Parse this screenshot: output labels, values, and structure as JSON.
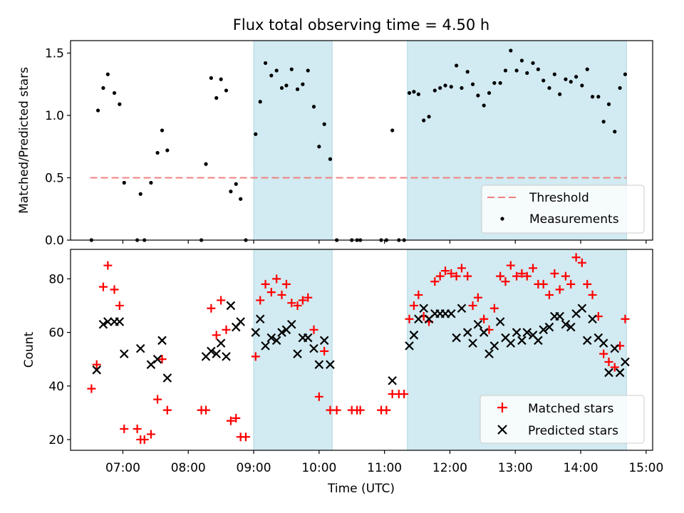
{
  "figure": {
    "title": "Flux total observing time = 4.50 h",
    "xlabel": "Time (UTC)",
    "xticks": [
      {
        "label": "07:00",
        "value": 7.0
      },
      {
        "label": "08:00",
        "value": 8.0
      },
      {
        "label": "09:00",
        "value": 9.0
      },
      {
        "label": "10:00",
        "value": 10.0
      },
      {
        "label": "11:00",
        "value": 11.0
      },
      {
        "label": "12:00",
        "value": 12.0
      },
      {
        "label": "13:00",
        "value": 13.0
      },
      {
        "label": "14:00",
        "value": 14.0
      },
      {
        "label": "15:00",
        "value": 15.0
      }
    ],
    "xlim": [
      6.2,
      15.1
    ],
    "shaded_intervals": [
      [
        9.0,
        10.2
      ],
      [
        11.35,
        14.7
      ]
    ],
    "shade_color": "#add8e6"
  },
  "chart_data": [
    {
      "type": "scatter",
      "ylabel": "Matched/Predicted stars",
      "ylim": [
        0,
        1.6
      ],
      "yticks": [
        {
          "label": "0.0",
          "value": 0.0
        },
        {
          "label": "0.5",
          "value": 0.5
        },
        {
          "label": "1.0",
          "value": 1.0
        },
        {
          "label": "1.5",
          "value": 1.5
        }
      ],
      "threshold": {
        "name": "Threshold",
        "value": 0.5,
        "x_range": [
          6.5,
          14.7
        ],
        "color": "#f08080"
      },
      "legend_position": "lower-right",
      "series": [
        {
          "name": "Measurements",
          "color": "#000000",
          "marker": "dot",
          "points": [
            [
              6.52,
              0.0
            ],
            [
              6.62,
              1.04
            ],
            [
              6.7,
              1.22
            ],
            [
              6.77,
              1.33
            ],
            [
              6.87,
              1.18
            ],
            [
              6.95,
              1.09
            ],
            [
              7.02,
              0.46
            ],
            [
              7.22,
              0.0
            ],
            [
              7.27,
              0.37
            ],
            [
              7.33,
              0.0
            ],
            [
              7.43,
              0.46
            ],
            [
              7.53,
              0.7
            ],
            [
              7.6,
              0.88
            ],
            [
              7.68,
              0.72
            ],
            [
              8.2,
              0.0
            ],
            [
              8.27,
              0.61
            ],
            [
              8.35,
              1.3
            ],
            [
              8.43,
              1.14
            ],
            [
              8.5,
              1.29
            ],
            [
              8.58,
              1.2
            ],
            [
              8.65,
              0.39
            ],
            [
              8.73,
              0.45
            ],
            [
              8.8,
              0.33
            ],
            [
              8.88,
              0.0
            ],
            [
              9.03,
              0.85
            ],
            [
              9.1,
              1.11
            ],
            [
              9.18,
              1.42
            ],
            [
              9.27,
              1.32
            ],
            [
              9.35,
              1.36
            ],
            [
              9.43,
              1.22
            ],
            [
              9.5,
              1.24
            ],
            [
              9.58,
              1.37
            ],
            [
              9.67,
              1.21
            ],
            [
              9.75,
              1.25
            ],
            [
              9.83,
              1.36
            ],
            [
              9.92,
              1.07
            ],
            [
              10.0,
              0.75
            ],
            [
              10.08,
              0.93
            ],
            [
              10.17,
              0.65
            ],
            [
              10.27,
              0.0
            ],
            [
              10.5,
              0.0
            ],
            [
              10.58,
              0.0
            ],
            [
              10.63,
              0.0
            ],
            [
              10.95,
              0.0
            ],
            [
              11.03,
              0.0
            ],
            [
              11.12,
              0.88
            ],
            [
              11.22,
              0.0
            ],
            [
              11.3,
              0.0
            ],
            [
              11.38,
              1.18
            ],
            [
              11.45,
              1.19
            ],
            [
              11.52,
              1.17
            ],
            [
              11.6,
              0.96
            ],
            [
              11.68,
              0.99
            ],
            [
              11.77,
              1.2
            ],
            [
              11.85,
              1.22
            ],
            [
              11.93,
              1.24
            ],
            [
              12.02,
              1.23
            ],
            [
              12.1,
              1.4
            ],
            [
              12.18,
              1.22
            ],
            [
              12.27,
              1.35
            ],
            [
              12.35,
              1.25
            ],
            [
              12.43,
              1.16
            ],
            [
              12.52,
              1.08
            ],
            [
              12.6,
              1.18
            ],
            [
              12.68,
              1.26
            ],
            [
              12.77,
              1.26
            ],
            [
              12.85,
              1.36
            ],
            [
              12.93,
              1.52
            ],
            [
              13.02,
              1.36
            ],
            [
              13.1,
              1.44
            ],
            [
              13.18,
              1.34
            ],
            [
              13.27,
              1.42
            ],
            [
              13.35,
              1.37
            ],
            [
              13.43,
              1.28
            ],
            [
              13.52,
              1.22
            ],
            [
              13.6,
              1.33
            ],
            [
              13.68,
              1.17
            ],
            [
              13.77,
              1.29
            ],
            [
              13.85,
              1.27
            ],
            [
              13.93,
              1.31
            ],
            [
              14.02,
              1.24
            ],
            [
              14.1,
              1.37
            ],
            [
              14.18,
              1.15
            ],
            [
              14.27,
              1.15
            ],
            [
              14.35,
              0.95
            ],
            [
              14.43,
              1.09
            ],
            [
              14.52,
              0.87
            ],
            [
              14.6,
              1.22
            ],
            [
              14.68,
              1.33
            ]
          ]
        }
      ]
    },
    {
      "type": "scatter",
      "ylabel": "Count",
      "ylim": [
        16,
        91
      ],
      "yticks": [
        {
          "label": "20",
          "value": 20
        },
        {
          "label": "40",
          "value": 40
        },
        {
          "label": "60",
          "value": 60
        },
        {
          "label": "80",
          "value": 80
        }
      ],
      "legend_position": "lower-right",
      "series": [
        {
          "name": "Matched stars",
          "color": "#ff0000",
          "marker": "plus",
          "points": [
            [
              6.52,
              39
            ],
            [
              6.6,
              48
            ],
            [
              6.7,
              77
            ],
            [
              6.77,
              85
            ],
            [
              6.87,
              76
            ],
            [
              6.95,
              70
            ],
            [
              7.02,
              24
            ],
            [
              7.22,
              24
            ],
            [
              7.27,
              20
            ],
            [
              7.33,
              20
            ],
            [
              7.43,
              22
            ],
            [
              7.53,
              35
            ],
            [
              7.6,
              50
            ],
            [
              7.68,
              31
            ],
            [
              8.2,
              31
            ],
            [
              8.27,
              31
            ],
            [
              8.35,
              69
            ],
            [
              8.43,
              59
            ],
            [
              8.5,
              72
            ],
            [
              8.58,
              61
            ],
            [
              8.65,
              27
            ],
            [
              8.73,
              28
            ],
            [
              8.8,
              21
            ],
            [
              8.88,
              21
            ],
            [
              9.03,
              51
            ],
            [
              9.1,
              72
            ],
            [
              9.18,
              78
            ],
            [
              9.27,
              75
            ],
            [
              9.35,
              80
            ],
            [
              9.43,
              74
            ],
            [
              9.5,
              78
            ],
            [
              9.58,
              71
            ],
            [
              9.67,
              70
            ],
            [
              9.75,
              72
            ],
            [
              9.83,
              73
            ],
            [
              9.92,
              61
            ],
            [
              10.0,
              36
            ],
            [
              10.08,
              53
            ],
            [
              10.17,
              31
            ],
            [
              10.27,
              31
            ],
            [
              10.5,
              31
            ],
            [
              10.58,
              31
            ],
            [
              10.63,
              31
            ],
            [
              10.95,
              31
            ],
            [
              11.03,
              31
            ],
            [
              11.12,
              37
            ],
            [
              11.22,
              37
            ],
            [
              11.3,
              37
            ],
            [
              11.38,
              65
            ],
            [
              11.45,
              70
            ],
            [
              11.52,
              74
            ],
            [
              11.6,
              66
            ],
            [
              11.68,
              64
            ],
            [
              11.77,
              79
            ],
            [
              11.85,
              81
            ],
            [
              11.93,
              83
            ],
            [
              12.02,
              82
            ],
            [
              12.1,
              81
            ],
            [
              12.18,
              84
            ],
            [
              12.27,
              81
            ],
            [
              12.35,
              70
            ],
            [
              12.43,
              73
            ],
            [
              12.52,
              65
            ],
            [
              12.6,
              61
            ],
            [
              12.68,
              69
            ],
            [
              12.77,
              81
            ],
            [
              12.85,
              79
            ],
            [
              12.93,
              85
            ],
            [
              13.02,
              81
            ],
            [
              13.1,
              82
            ],
            [
              13.18,
              81
            ],
            [
              13.27,
              84
            ],
            [
              13.35,
              78
            ],
            [
              13.43,
              78
            ],
            [
              13.52,
              74
            ],
            [
              13.6,
              82
            ],
            [
              13.68,
              76
            ],
            [
              13.77,
              81
            ],
            [
              13.85,
              78
            ],
            [
              13.93,
              88
            ],
            [
              14.02,
              86
            ],
            [
              14.1,
              78
            ],
            [
              14.18,
              74
            ],
            [
              14.27,
              66
            ],
            [
              14.35,
              52
            ],
            [
              14.43,
              49
            ],
            [
              14.52,
              47
            ],
            [
              14.6,
              55
            ],
            [
              14.68,
              65
            ]
          ]
        },
        {
          "name": "Predicted stars",
          "color": "#000000",
          "marker": "x",
          "points": [
            [
              6.6,
              46
            ],
            [
              6.7,
              63
            ],
            [
              6.77,
              64
            ],
            [
              6.87,
              64
            ],
            [
              6.95,
              64
            ],
            [
              7.02,
              52
            ],
            [
              7.27,
              54
            ],
            [
              7.43,
              48
            ],
            [
              7.53,
              50
            ],
            [
              7.6,
              57
            ],
            [
              7.68,
              43
            ],
            [
              8.27,
              51
            ],
            [
              8.35,
              53
            ],
            [
              8.43,
              52
            ],
            [
              8.5,
              56
            ],
            [
              8.58,
              51
            ],
            [
              8.65,
              70
            ],
            [
              8.73,
              62
            ],
            [
              8.8,
              64
            ],
            [
              9.03,
              60
            ],
            [
              9.1,
              65
            ],
            [
              9.18,
              55
            ],
            [
              9.27,
              58
            ],
            [
              9.35,
              57
            ],
            [
              9.43,
              60
            ],
            [
              9.5,
              61
            ],
            [
              9.58,
              63
            ],
            [
              9.67,
              52
            ],
            [
              9.75,
              58
            ],
            [
              9.83,
              58
            ],
            [
              9.92,
              54
            ],
            [
              10.0,
              48
            ],
            [
              10.08,
              57
            ],
            [
              10.17,
              48
            ],
            [
              11.12,
              42
            ],
            [
              11.38,
              55
            ],
            [
              11.45,
              59
            ],
            [
              11.52,
              65
            ],
            [
              11.6,
              69
            ],
            [
              11.68,
              65
            ],
            [
              11.77,
              67
            ],
            [
              11.85,
              67
            ],
            [
              11.93,
              67
            ],
            [
              12.02,
              67
            ],
            [
              12.1,
              58
            ],
            [
              12.18,
              69
            ],
            [
              12.27,
              60
            ],
            [
              12.35,
              56
            ],
            [
              12.43,
              63
            ],
            [
              12.52,
              60
            ],
            [
              12.6,
              52
            ],
            [
              12.68,
              55
            ],
            [
              12.77,
              64
            ],
            [
              12.85,
              58
            ],
            [
              12.93,
              56
            ],
            [
              13.02,
              60
            ],
            [
              13.1,
              57
            ],
            [
              13.18,
              60
            ],
            [
              13.27,
              59
            ],
            [
              13.35,
              57
            ],
            [
              13.43,
              61
            ],
            [
              13.52,
              62
            ],
            [
              13.6,
              66
            ],
            [
              13.68,
              66
            ],
            [
              13.77,
              63
            ],
            [
              13.85,
              62
            ],
            [
              13.93,
              67
            ],
            [
              14.02,
              69
            ],
            [
              14.1,
              57
            ],
            [
              14.18,
              65
            ],
            [
              14.27,
              58
            ],
            [
              14.35,
              56
            ],
            [
              14.43,
              45
            ],
            [
              14.52,
              54
            ],
            [
              14.6,
              45
            ],
            [
              14.68,
              49
            ]
          ]
        }
      ]
    }
  ]
}
